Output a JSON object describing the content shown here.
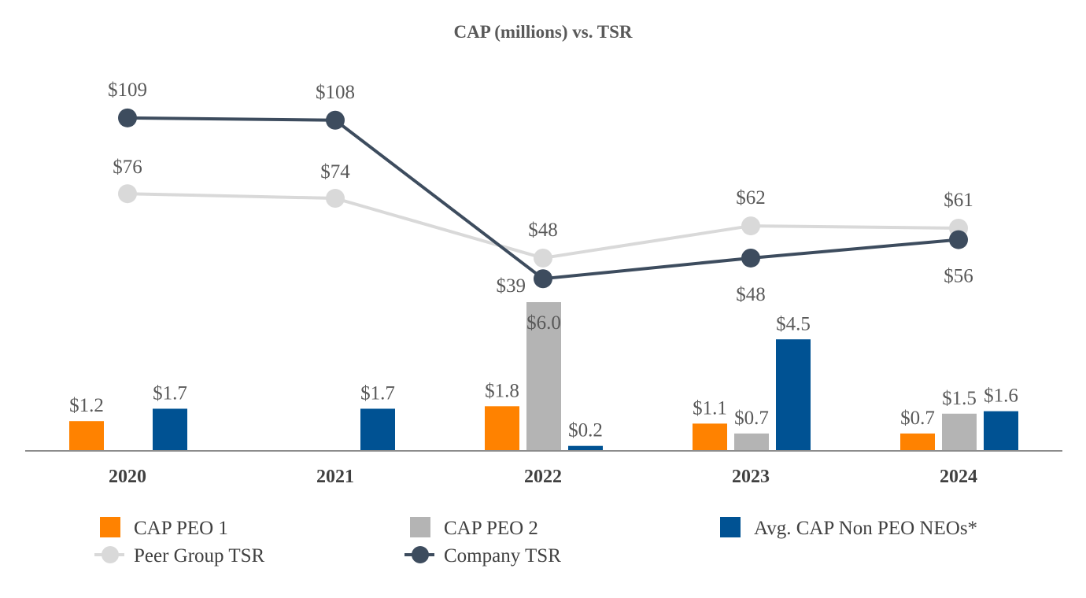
{
  "chart_data": {
    "type": "bar+line",
    "title": "CAP (millions) vs. TSR",
    "categories": [
      "2020",
      "2021",
      "2022",
      "2023",
      "2024"
    ],
    "bar_series": [
      {
        "name": "CAP PEO 1",
        "color": "#FF8200",
        "values": [
          1.2,
          null,
          1.8,
          1.1,
          0.7
        ],
        "labels": [
          "$1.2",
          "",
          "$1.8",
          "$1.1",
          "$0.7"
        ]
      },
      {
        "name": "CAP PEO 2",
        "color": "#B4B4B4",
        "values": [
          null,
          null,
          6.0,
          0.7,
          1.5
        ],
        "labels": [
          "",
          "",
          "$6.0",
          "$0.7",
          "$1.5"
        ]
      },
      {
        "name": "Avg. CAP Non PEO NEOs*",
        "color": "#005293",
        "values": [
          1.7,
          1.7,
          0.2,
          4.5,
          1.6
        ],
        "labels": [
          "$1.7",
          "$1.7",
          "$0.2",
          "$4.5",
          "$1.6"
        ]
      }
    ],
    "line_series": [
      {
        "name": "Peer Group TSR",
        "color": "#D9D9D9",
        "values": [
          76,
          74,
          48,
          62,
          61
        ],
        "labels": [
          "$76",
          "$74",
          "$48",
          "$62",
          "$61"
        ]
      },
      {
        "name": "Company TSR",
        "color": "#3D4C5E",
        "values": [
          109,
          108,
          39,
          48,
          56
        ],
        "labels": [
          "$109",
          "$108",
          "$39",
          "$48",
          "$56"
        ]
      }
    ],
    "xlabel": "",
    "ylabel": "",
    "grid": false,
    "legend_position": "bottom"
  }
}
